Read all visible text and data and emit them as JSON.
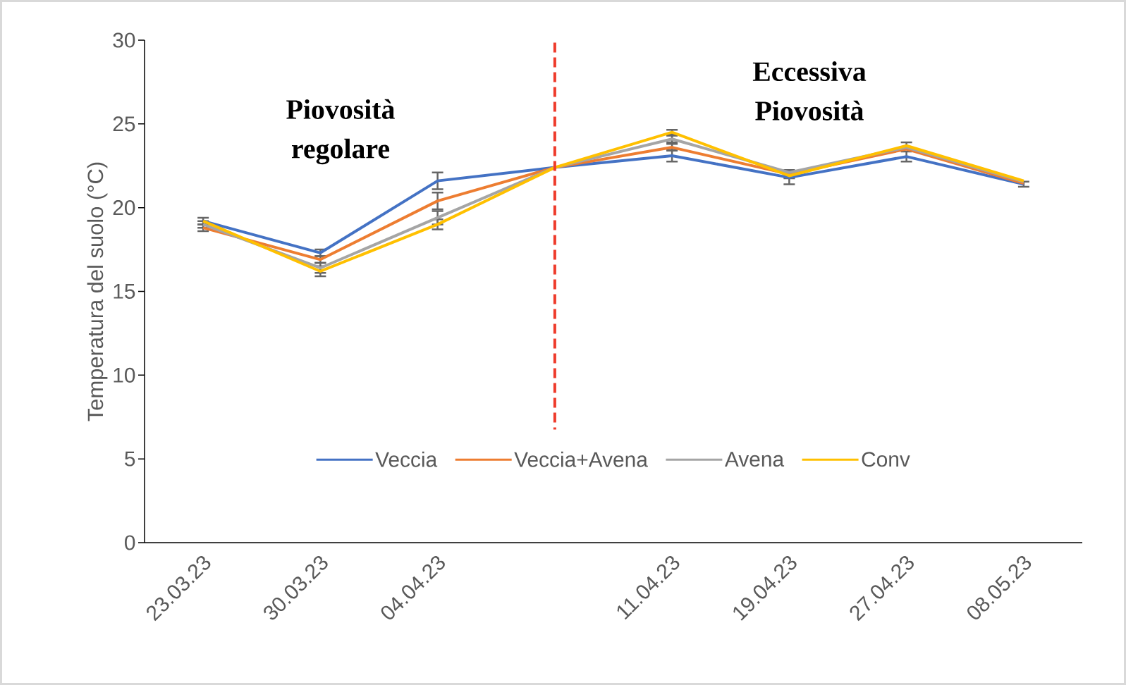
{
  "chart_data": {
    "type": "line",
    "ylabel": "Temperatura del suolo (°C)",
    "categories": [
      "23.03.23",
      "30.03.23",
      "04.04.23",
      null,
      "11.04.23",
      "19.04.23",
      "27.04.23",
      "08.05.23"
    ],
    "ylim": [
      0,
      30
    ],
    "yticks": [
      0,
      5,
      10,
      15,
      20,
      25,
      30
    ],
    "series": [
      {
        "name": "Veccia",
        "color": "#4472c4",
        "values": [
          19.2,
          17.3,
          21.6,
          22.4,
          23.1,
          21.8,
          23.05,
          21.4
        ],
        "errors": [
          0.2,
          0.2,
          0.5,
          null,
          0.35,
          0.4,
          0.3,
          0.15
        ]
      },
      {
        "name": "Veccia+Avena",
        "color": "#ed7d31",
        "values": [
          18.8,
          16.9,
          20.4,
          22.4,
          23.6,
          22.0,
          23.5,
          21.45
        ],
        "errors": [
          0.2,
          0.2,
          0.5,
          null,
          0.2,
          0.2,
          null,
          null
        ]
      },
      {
        "name": "Avena",
        "color": "#a5a5a5",
        "values": [
          19.0,
          16.4,
          19.4,
          22.4,
          24.1,
          22.1,
          23.6,
          21.55
        ],
        "errors": [
          0.2,
          0.3,
          0.4,
          null,
          0.2,
          0.15,
          null,
          null
        ]
      },
      {
        "name": "Conv",
        "color": "#ffc000",
        "values": [
          19.2,
          16.2,
          19.0,
          22.4,
          24.5,
          21.9,
          23.7,
          21.6
        ],
        "errors": [
          null,
          0.3,
          0.3,
          null,
          0.15,
          0.15,
          0.2,
          null
        ]
      }
    ],
    "annotations": [
      "Piovosità regolare",
      "Eccessiva Piovosità"
    ],
    "legend": "bottom",
    "grid": false,
    "line_style": "solid"
  }
}
